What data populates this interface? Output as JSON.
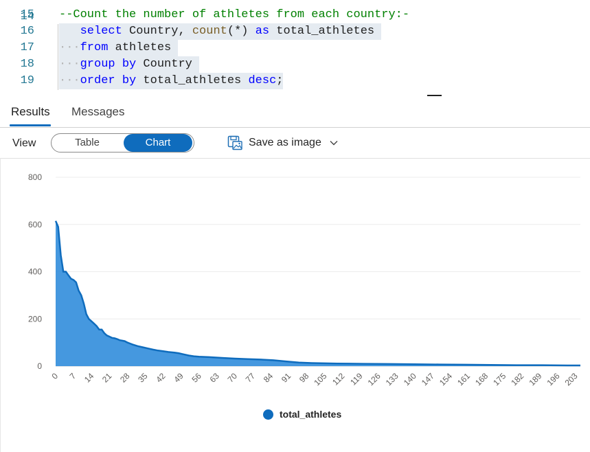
{
  "editor": {
    "lines": [
      {
        "num": "15",
        "tokens": [
          {
            "t": "comment",
            "v": "--Count the number of athletes from each country:-"
          }
        ]
      },
      {
        "num": "16",
        "tokens": [
          {
            "t": "ws",
            "v": "   "
          },
          {
            "t": "kw",
            "v": "select"
          },
          {
            "t": "id",
            "v": " Country, "
          },
          {
            "t": "fn",
            "v": "count"
          },
          {
            "t": "id",
            "v": "(*) "
          },
          {
            "t": "kw",
            "v": "as"
          },
          {
            "t": "id",
            "v": " total_athletes "
          }
        ]
      },
      {
        "num": "17",
        "tokens": [
          {
            "t": "ws",
            "v": "···"
          },
          {
            "t": "kw",
            "v": "from"
          },
          {
            "t": "id",
            "v": " athletes "
          }
        ]
      },
      {
        "num": "18",
        "tokens": [
          {
            "t": "ws",
            "v": "···"
          },
          {
            "t": "kw",
            "v": "group"
          },
          {
            "t": "id",
            "v": " "
          },
          {
            "t": "kw",
            "v": "by"
          },
          {
            "t": "id",
            "v": " Country "
          }
        ]
      },
      {
        "num": "19",
        "tokens": [
          {
            "t": "ws",
            "v": "···"
          },
          {
            "t": "kw",
            "v": "order"
          },
          {
            "t": "id",
            "v": " "
          },
          {
            "t": "kw",
            "v": "by"
          },
          {
            "t": "id",
            "v": " total_athletes "
          },
          {
            "t": "kw",
            "v": "desc"
          },
          {
            "t": "id",
            "v": ";"
          }
        ]
      }
    ]
  },
  "tabs": [
    {
      "label": "Results",
      "active": true
    },
    {
      "label": "Messages",
      "active": false
    }
  ],
  "toolbar": {
    "view_label": "View",
    "table_label": "Table",
    "chart_label": "Chart",
    "save_label": "Save as image",
    "selected_view": "Chart"
  },
  "colors": {
    "accent": "#0f6cbd",
    "area_fill": "#3b92dd",
    "line": "#0f6cbd"
  },
  "icons": {
    "save": "save-image-icon",
    "dropdown": "chevron-down-icon"
  },
  "chart_data": {
    "type": "area",
    "title": "",
    "xlabel": "",
    "ylabel": "",
    "ylim": [
      0,
      800
    ],
    "xlim": [
      0,
      205
    ],
    "yticks": [
      "0",
      "200",
      "400",
      "600",
      "800"
    ],
    "xticks": [
      "0",
      "7",
      "14",
      "21",
      "28",
      "35",
      "42",
      "49",
      "56",
      "63",
      "70",
      "77",
      "84",
      "91",
      "98",
      "105",
      "112",
      "119",
      "126",
      "133",
      "140",
      "147",
      "154",
      "161",
      "168",
      "175",
      "182",
      "189",
      "196",
      "203"
    ],
    "legend_position": "bottom",
    "grid": true,
    "series": [
      {
        "name": "total_athletes",
        "x": [
          0,
          1,
          2,
          3,
          4,
          5,
          6,
          7,
          8,
          9,
          10,
          11,
          12,
          13,
          14,
          15,
          16,
          17,
          18,
          19,
          20,
          21,
          22,
          23,
          24,
          25,
          26,
          27,
          28,
          29,
          30,
          32,
          34,
          36,
          38,
          40,
          42,
          44,
          46,
          48,
          50,
          52,
          54,
          56,
          60,
          65,
          70,
          75,
          80,
          85,
          90,
          95,
          100,
          110,
          120,
          130,
          140,
          150,
          160,
          170,
          180,
          190,
          200,
          205
        ],
        "values": [
          615,
          590,
          470,
          400,
          400,
          385,
          370,
          365,
          355,
          320,
          300,
          265,
          220,
          200,
          190,
          180,
          170,
          155,
          155,
          140,
          130,
          125,
          120,
          118,
          115,
          110,
          108,
          106,
          100,
          96,
          92,
          85,
          80,
          75,
          70,
          66,
          63,
          60,
          58,
          55,
          50,
          45,
          42,
          40,
          38,
          35,
          32,
          30,
          28,
          25,
          20,
          15,
          13,
          11,
          10,
          9,
          8,
          7,
          6,
          5,
          4,
          4,
          3,
          3
        ]
      }
    ]
  }
}
